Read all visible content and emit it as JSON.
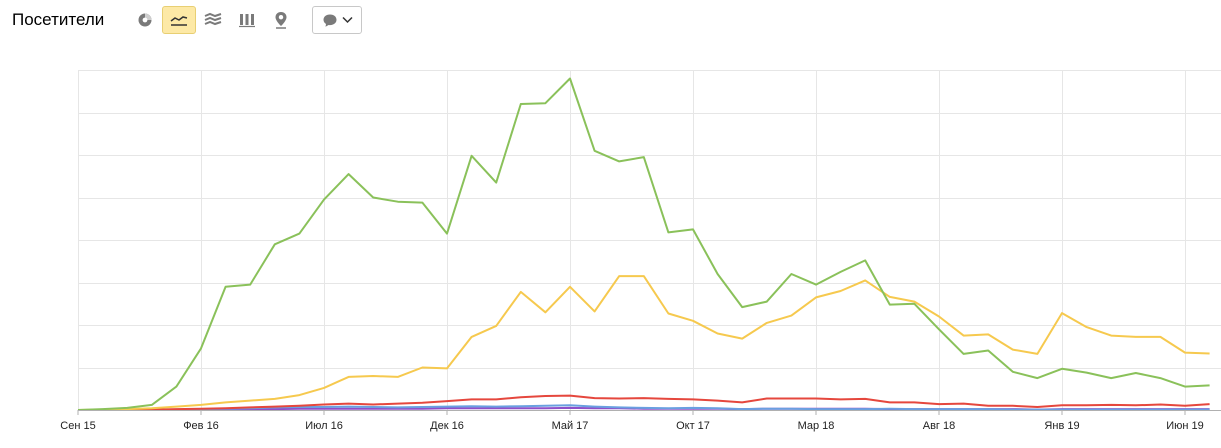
{
  "header": {
    "title": "Посетители"
  },
  "toolbar": {
    "buttons": [
      {
        "icon": "pie-chart-icon",
        "active": false
      },
      {
        "icon": "line-chart-icon",
        "active": true
      },
      {
        "icon": "area-chart-icon",
        "active": false
      },
      {
        "icon": "bar-chart-icon",
        "active": false
      },
      {
        "icon": "map-pin-icon",
        "active": false
      }
    ],
    "dropdown_icon": "comment-icon"
  },
  "colors": {
    "green": "#8ac15a",
    "yellow": "#f6c94e",
    "red": "#e5473d",
    "blue": "#6a9fe0",
    "purple": "#8e4fc9",
    "grid": "#e6e6e6",
    "active_button": "#fde9a6"
  },
  "chart_data": {
    "type": "line",
    "x_tick_labels": [
      "Сен 15",
      "Фев 16",
      "Июл 16",
      "Дек 16",
      "Май 17",
      "Окт 17",
      "Мар 18",
      "Авг 18",
      "Янв 19",
      "Июн 19"
    ],
    "x_tick_month_index": [
      0,
      5,
      10,
      15,
      20,
      25,
      30,
      35,
      40,
      45
    ],
    "y_tick_labels": [],
    "grid": true,
    "legend": "none",
    "ylim": [
      0,
      8
    ],
    "series": [
      {
        "color": "green",
        "values": [
          0,
          0.02,
          0.05,
          0.12,
          0.55,
          1.45,
          2.9,
          2.95,
          3.9,
          4.15,
          4.95,
          5.55,
          5.0,
          4.9,
          4.88,
          4.15,
          5.98,
          5.35,
          7.2,
          7.22,
          7.8,
          6.1,
          5.85,
          5.95,
          4.18,
          4.25,
          3.2,
          2.42,
          2.55,
          3.2,
          2.95,
          3.25,
          3.52,
          2.48,
          2.5,
          1.9,
          1.32,
          1.4,
          0.9,
          0.75,
          0.97,
          0.88,
          0.75,
          0.87,
          0.75,
          0.55,
          0.58
        ]
      },
      {
        "color": "yellow",
        "values": [
          0,
          0.01,
          0.02,
          0.04,
          0.08,
          0.12,
          0.18,
          0.22,
          0.26,
          0.35,
          0.52,
          0.78,
          0.8,
          0.78,
          1.0,
          0.98,
          1.72,
          1.98,
          2.78,
          2.3,
          2.9,
          2.32,
          3.15,
          3.15,
          2.27,
          2.1,
          1.8,
          1.68,
          2.05,
          2.22,
          2.65,
          2.8,
          3.05,
          2.66,
          2.55,
          2.2,
          1.75,
          1.78,
          1.42,
          1.32,
          2.28,
          1.95,
          1.75,
          1.72,
          1.72,
          1.35,
          1.33
        ]
      },
      {
        "color": "red",
        "values": [
          0,
          0,
          0,
          0.01,
          0.02,
          0.03,
          0.04,
          0.06,
          0.08,
          0.1,
          0.13,
          0.15,
          0.13,
          0.15,
          0.17,
          0.21,
          0.25,
          0.25,
          0.3,
          0.33,
          0.34,
          0.28,
          0.27,
          0.28,
          0.26,
          0.25,
          0.22,
          0.18,
          0.27,
          0.27,
          0.27,
          0.25,
          0.26,
          0.18,
          0.18,
          0.14,
          0.15,
          0.1,
          0.1,
          0.07,
          0.11,
          0.11,
          0.12,
          0.11,
          0.13,
          0.1,
          0.14
        ]
      },
      {
        "color": "blue",
        "values": [
          0,
          0,
          0,
          0,
          0.01,
          0.02,
          0.03,
          0.04,
          0.06,
          0.07,
          0.07,
          0.08,
          0.07,
          0.06,
          0.07,
          0.08,
          0.09,
          0.08,
          0.09,
          0.1,
          0.11,
          0.08,
          0.06,
          0.05,
          0.04,
          0.05,
          0.04,
          0.02,
          0.03,
          0.03,
          0.02,
          0.02,
          0.02,
          0.03,
          0.02,
          0.02,
          0.02,
          0.02,
          0.01,
          0.01,
          0.01,
          0.01,
          0.01,
          0.01,
          0.01,
          0.01,
          0.01
        ]
      },
      {
        "color": "purple",
        "values": [
          0,
          0,
          0,
          0,
          0,
          0.01,
          0.01,
          0.02,
          0.02,
          0.03,
          0.03,
          0.03,
          0.03,
          0.03,
          0.03,
          0.04,
          0.04,
          0.04,
          0.04,
          0.04,
          0.05,
          0.04,
          0.04,
          0.03,
          0.03,
          0.03,
          0.03,
          0.02,
          0.03,
          0.03,
          0.03,
          0.03,
          0.03,
          0.02,
          0.02,
          0.02,
          0.02,
          0.02,
          0.02,
          0.01,
          0.02,
          0.02,
          0.02,
          0.02,
          0.02,
          0.02,
          0.02
        ]
      }
    ]
  }
}
